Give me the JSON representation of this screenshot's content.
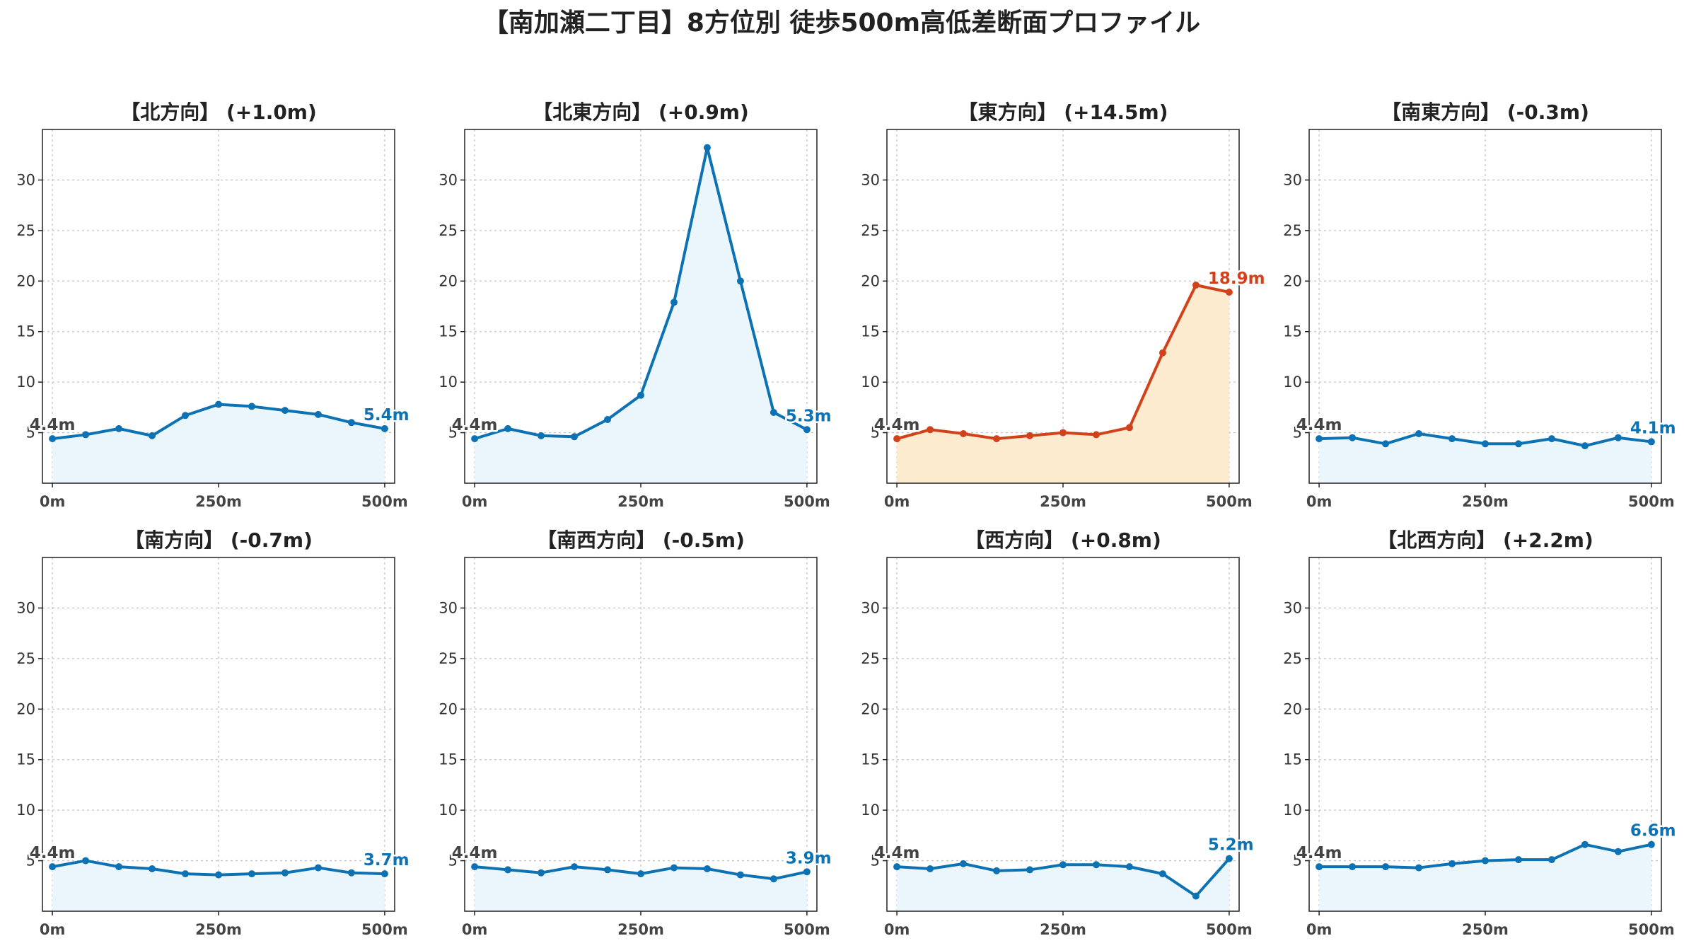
{
  "figure": {
    "title": "【南加瀬二丁目】8方位別 徒歩500m高低差断面プロファイル"
  },
  "colors": {
    "normal_line": "#0d72b4",
    "normal_fill": "#eaf6fb",
    "highlight_line": "#d2421a",
    "highlight_fill": "#fdebd0",
    "start_label": "#444444"
  },
  "chart_data": [
    {
      "type": "area",
      "title": "【北方向】 (+1.0m)",
      "highlight": false,
      "x": [
        0,
        50,
        100,
        150,
        200,
        250,
        300,
        350,
        400,
        450,
        500
      ],
      "values": [
        4.4,
        4.8,
        5.4,
        4.7,
        6.7,
        7.8,
        7.6,
        7.2,
        6.8,
        6.0,
        5.4
      ],
      "xtick_labels": [
        "0m",
        "250m",
        "500m"
      ],
      "xticks": [
        0,
        250,
        500
      ],
      "yticks": [
        5,
        10,
        15,
        20,
        25,
        30
      ],
      "xlim": [
        -15,
        515
      ],
      "ylim": [
        0,
        35
      ],
      "grid": true,
      "start_label": "4.4m",
      "end_label": "5.4m"
    },
    {
      "type": "area",
      "title": "【北東方向】 (+0.9m)",
      "highlight": false,
      "x": [
        0,
        50,
        100,
        150,
        200,
        250,
        300,
        350,
        400,
        450,
        500
      ],
      "values": [
        4.4,
        5.4,
        4.7,
        4.6,
        6.3,
        8.7,
        17.9,
        33.2,
        20.0,
        7.0,
        5.3
      ],
      "xtick_labels": [
        "0m",
        "250m",
        "500m"
      ],
      "xticks": [
        0,
        250,
        500
      ],
      "yticks": [
        5,
        10,
        15,
        20,
        25,
        30
      ],
      "xlim": [
        -15,
        515
      ],
      "ylim": [
        0,
        35
      ],
      "grid": true,
      "start_label": "4.4m",
      "end_label": "5.3m"
    },
    {
      "type": "area",
      "title": "【東方向】 (+14.5m)",
      "highlight": true,
      "x": [
        0,
        50,
        100,
        150,
        200,
        250,
        300,
        350,
        400,
        450,
        500
      ],
      "values": [
        4.4,
        5.3,
        4.9,
        4.4,
        4.7,
        5.0,
        4.8,
        5.5,
        12.9,
        19.6,
        18.9
      ],
      "xtick_labels": [
        "0m",
        "250m",
        "500m"
      ],
      "xticks": [
        0,
        250,
        500
      ],
      "yticks": [
        5,
        10,
        15,
        20,
        25,
        30
      ],
      "xlim": [
        -15,
        515
      ],
      "ylim": [
        0,
        35
      ],
      "grid": true,
      "start_label": "4.4m",
      "end_label": "18.9m"
    },
    {
      "type": "area",
      "title": "【南東方向】 (-0.3m)",
      "highlight": false,
      "x": [
        0,
        50,
        100,
        150,
        200,
        250,
        300,
        350,
        400,
        450,
        500
      ],
      "values": [
        4.4,
        4.5,
        3.9,
        4.9,
        4.4,
        3.9,
        3.9,
        4.4,
        3.7,
        4.5,
        4.1
      ],
      "xtick_labels": [
        "0m",
        "250m",
        "500m"
      ],
      "xticks": [
        0,
        250,
        500
      ],
      "yticks": [
        5,
        10,
        15,
        20,
        25,
        30
      ],
      "xlim": [
        -15,
        515
      ],
      "ylim": [
        0,
        35
      ],
      "grid": true,
      "start_label": "4.4m",
      "end_label": "4.1m"
    },
    {
      "type": "area",
      "title": "【南方向】 (-0.7m)",
      "highlight": false,
      "x": [
        0,
        50,
        100,
        150,
        200,
        250,
        300,
        350,
        400,
        450,
        500
      ],
      "values": [
        4.4,
        5.0,
        4.4,
        4.2,
        3.7,
        3.6,
        3.7,
        3.8,
        4.3,
        3.8,
        3.7
      ],
      "xtick_labels": [
        "0m",
        "250m",
        "500m"
      ],
      "xticks": [
        0,
        250,
        500
      ],
      "yticks": [
        5,
        10,
        15,
        20,
        25,
        30
      ],
      "xlim": [
        -15,
        515
      ],
      "ylim": [
        0,
        35
      ],
      "grid": true,
      "start_label": "4.4m",
      "end_label": "3.7m"
    },
    {
      "type": "area",
      "title": "【南西方向】 (-0.5m)",
      "highlight": false,
      "x": [
        0,
        50,
        100,
        150,
        200,
        250,
        300,
        350,
        400,
        450,
        500
      ],
      "values": [
        4.4,
        4.1,
        3.8,
        4.4,
        4.1,
        3.7,
        4.3,
        4.2,
        3.6,
        3.2,
        3.9
      ],
      "xtick_labels": [
        "0m",
        "250m",
        "500m"
      ],
      "xticks": [
        0,
        250,
        500
      ],
      "yticks": [
        5,
        10,
        15,
        20,
        25,
        30
      ],
      "xlim": [
        -15,
        515
      ],
      "ylim": [
        0,
        35
      ],
      "grid": true,
      "start_label": "4.4m",
      "end_label": "3.9m"
    },
    {
      "type": "area",
      "title": "【西方向】 (+0.8m)",
      "highlight": false,
      "x": [
        0,
        50,
        100,
        150,
        200,
        250,
        300,
        350,
        400,
        450,
        500
      ],
      "values": [
        4.4,
        4.2,
        4.7,
        4.0,
        4.1,
        4.6,
        4.6,
        4.4,
        3.7,
        1.5,
        5.2
      ],
      "xtick_labels": [
        "0m",
        "250m",
        "500m"
      ],
      "xticks": [
        0,
        250,
        500
      ],
      "yticks": [
        5,
        10,
        15,
        20,
        25,
        30
      ],
      "xlim": [
        -15,
        515
      ],
      "ylim": [
        0,
        35
      ],
      "grid": true,
      "start_label": "4.4m",
      "end_label": "5.2m"
    },
    {
      "type": "area",
      "title": "【北西方向】 (+2.2m)",
      "highlight": false,
      "x": [
        0,
        50,
        100,
        150,
        200,
        250,
        300,
        350,
        400,
        450,
        500
      ],
      "values": [
        4.4,
        4.4,
        4.4,
        4.3,
        4.7,
        5.0,
        5.1,
        5.1,
        6.6,
        5.9,
        6.6
      ],
      "xtick_labels": [
        "0m",
        "250m",
        "500m"
      ],
      "xticks": [
        0,
        250,
        500
      ],
      "yticks": [
        5,
        10,
        15,
        20,
        25,
        30
      ],
      "xlim": [
        -15,
        515
      ],
      "ylim": [
        0,
        35
      ],
      "grid": true,
      "start_label": "4.4m",
      "end_label": "6.6m"
    }
  ]
}
